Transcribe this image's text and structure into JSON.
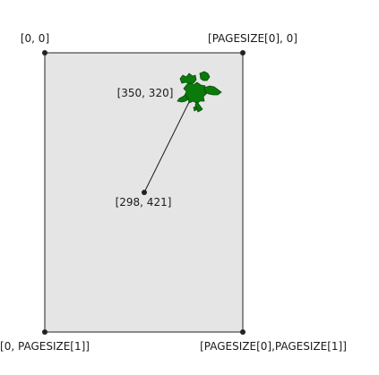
{
  "corners": {
    "top_left": "[0, 0]",
    "top_right": "[PAGESIZE[0], 0]",
    "bottom_left": "[0, PAGESIZE[1]]",
    "bottom_right": "[PAGESIZE[0],PAGESIZE[1]]"
  },
  "points": {
    "origin": "[298, 421]",
    "target": "[350, 320]"
  },
  "colors": {
    "page_fill": "#e5e5e5",
    "page_border": "#222222",
    "splat_fill": "#0a7a0a",
    "splat_stroke": "#064d06",
    "dot": "#222222"
  },
  "icons": {
    "splat": "green-splat-icon"
  }
}
